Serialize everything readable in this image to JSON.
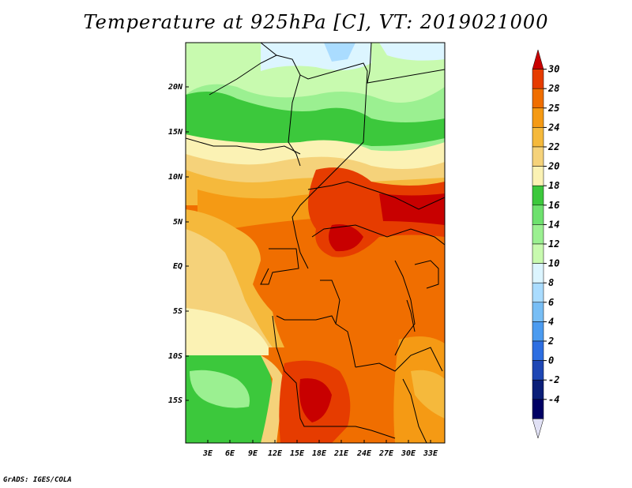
{
  "title": "Temperature at 925hPa [C], VT: 2019021000",
  "footer": "GrADS: IGES/COLA",
  "map": {
    "lat_labels": [
      "20N",
      "15N",
      "10N",
      "5N",
      "EQ",
      "5S",
      "10S",
      "15S"
    ],
    "lon_labels": [
      "3E",
      "6E",
      "9E",
      "12E",
      "15E",
      "18E",
      "21E",
      "24E",
      "27E",
      "30E",
      "33E"
    ]
  },
  "colorbar": {
    "levels": [
      "30",
      "28",
      "25",
      "24",
      "22",
      "20",
      "18",
      "16",
      "14",
      "12",
      "10",
      "8",
      "6",
      "4",
      "2",
      "0",
      "-2",
      "-4"
    ],
    "colors": [
      "#c80000",
      "#e63c00",
      "#f06e00",
      "#f59a14",
      "#f5b93c",
      "#f5d27a",
      "#fbf2b4",
      "#3cc83c",
      "#6ee16e",
      "#9bf091",
      "#c8faaf",
      "#dcf5ff",
      "#aadcff",
      "#78bef5",
      "#4b9bf0",
      "#2d6ee1",
      "#1e46b4",
      "#0a1e78",
      "#000064",
      "#e1e1f5"
    ]
  }
}
